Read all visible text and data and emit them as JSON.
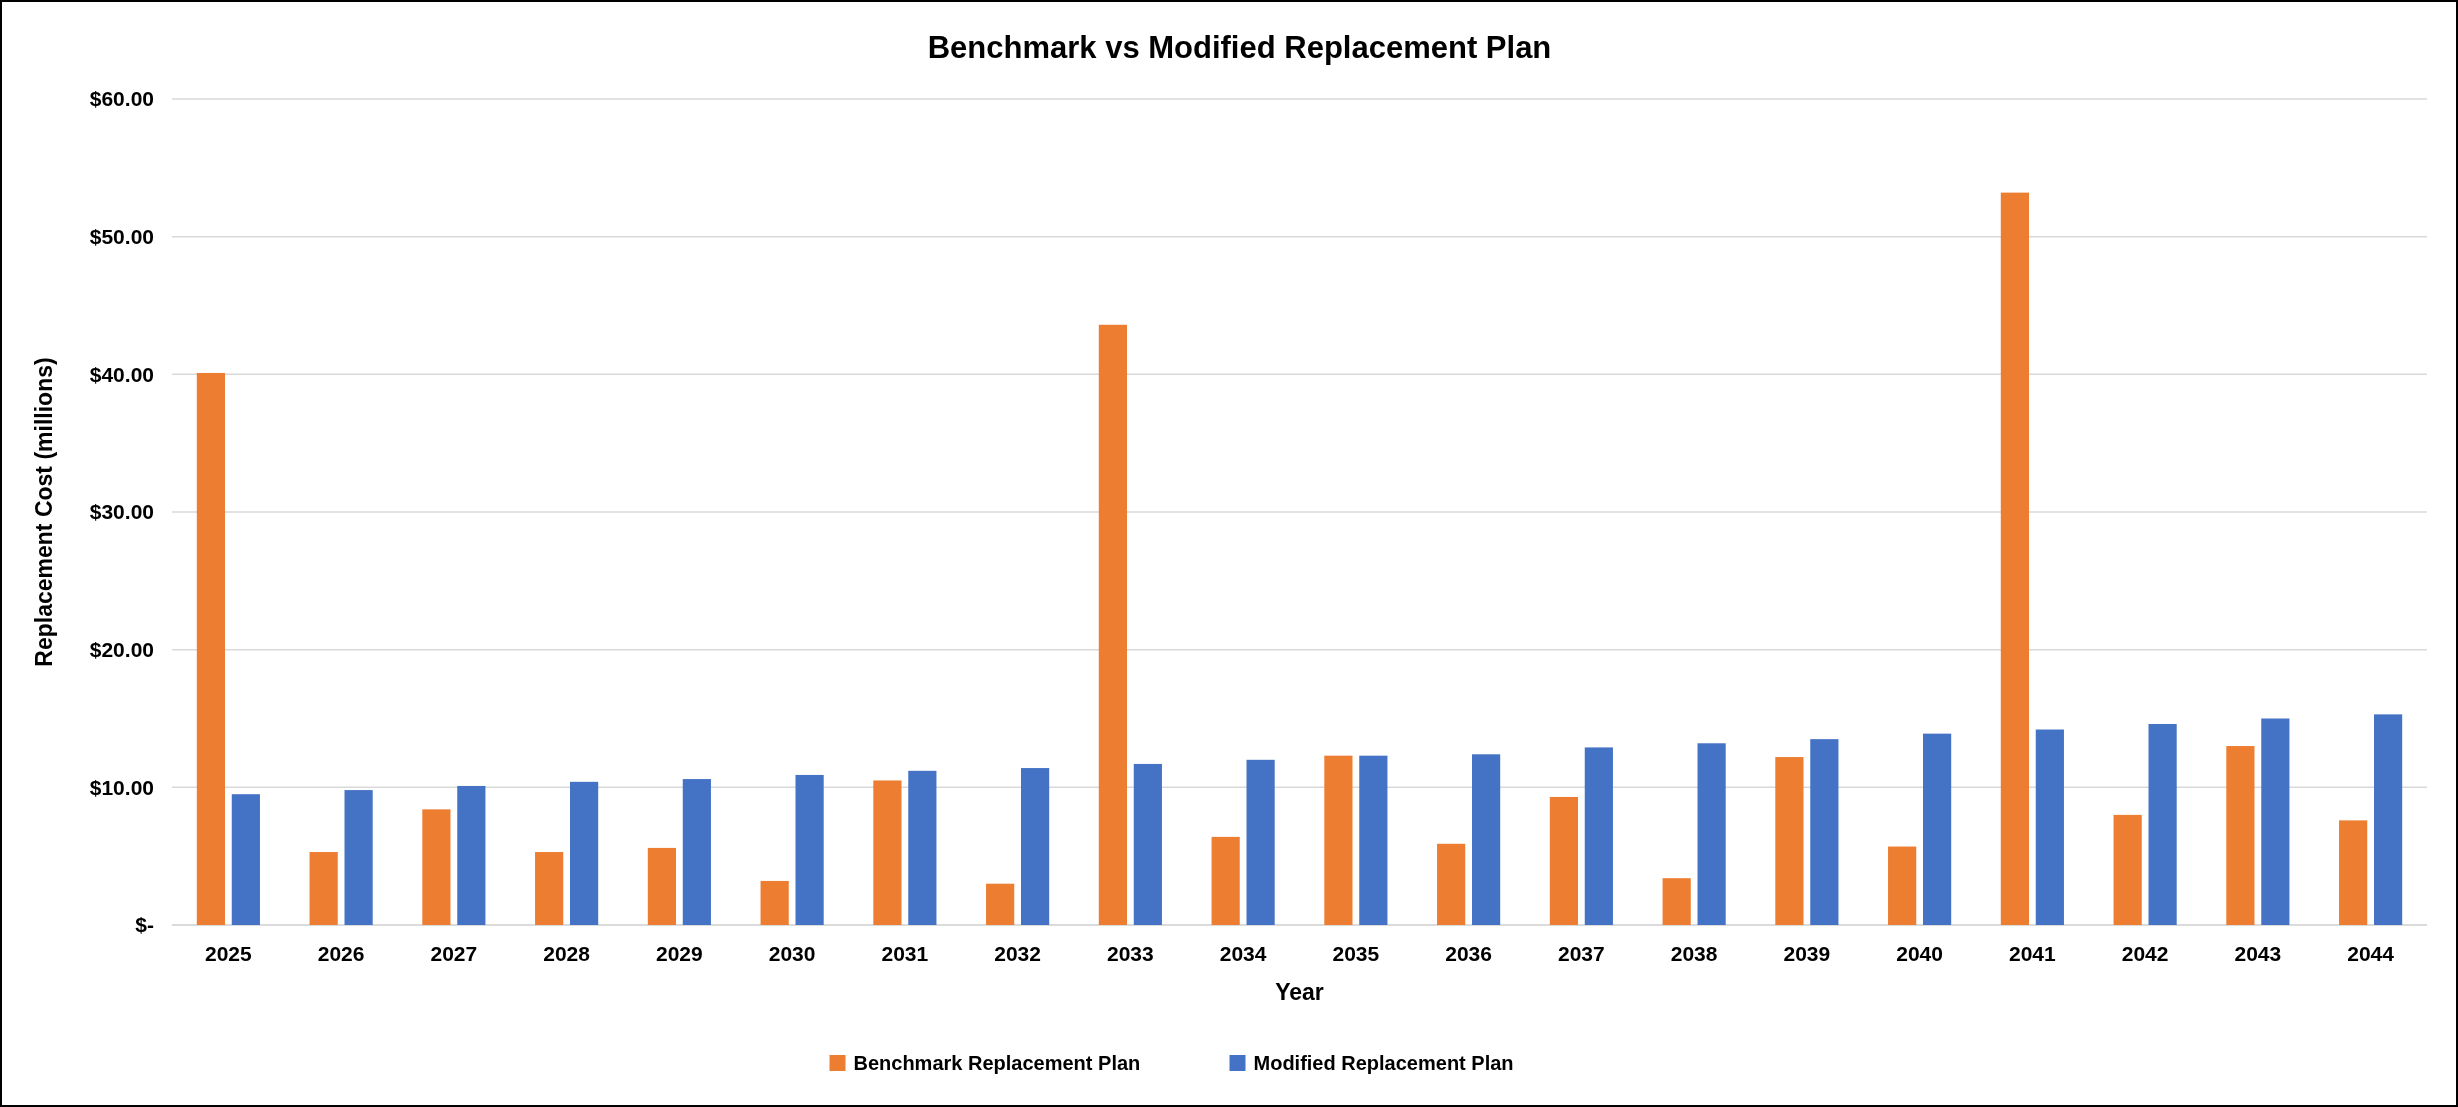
{
  "chart_data": {
    "type": "bar",
    "title": "Benchmark vs Modified Replacement Plan",
    "xlabel": "Year",
    "ylabel": "Replacement Cost (millions)",
    "categories": [
      "2025",
      "2026",
      "2027",
      "2028",
      "2029",
      "2030",
      "2031",
      "2032",
      "2033",
      "2034",
      "2035",
      "2036",
      "2037",
      "2038",
      "2039",
      "2040",
      "2041",
      "2042",
      "2043",
      "2044"
    ],
    "series": [
      {
        "name": "Benchmark Replacement Plan",
        "color": "#ed7d31",
        "values": [
          40.1,
          5.3,
          8.4,
          5.3,
          5.6,
          3.2,
          10.5,
          3.0,
          43.6,
          6.4,
          12.3,
          5.9,
          9.3,
          3.4,
          12.2,
          5.7,
          53.2,
          8.0,
          13.0,
          7.6
        ]
      },
      {
        "name": "Modified Replacement Plan",
        "color": "#4472c4",
        "values": [
          9.5,
          9.8,
          10.1,
          10.4,
          10.6,
          10.9,
          11.2,
          11.4,
          11.7,
          12.0,
          12.3,
          12.4,
          12.9,
          13.2,
          13.5,
          13.9,
          14.2,
          14.6,
          15.0,
          15.3
        ]
      }
    ],
    "ylim": [
      0,
      60
    ],
    "yticks": [
      {
        "value": 0,
        "label": "$-"
      },
      {
        "value": 10,
        "label": "$10.00"
      },
      {
        "value": 20,
        "label": "$20.00"
      },
      {
        "value": 30,
        "label": "$30.00"
      },
      {
        "value": 40,
        "label": "$40.00"
      },
      {
        "value": 50,
        "label": "$50.00"
      },
      {
        "value": 60,
        "label": "$60.00"
      }
    ],
    "grid": "y",
    "legend": "bottom"
  }
}
